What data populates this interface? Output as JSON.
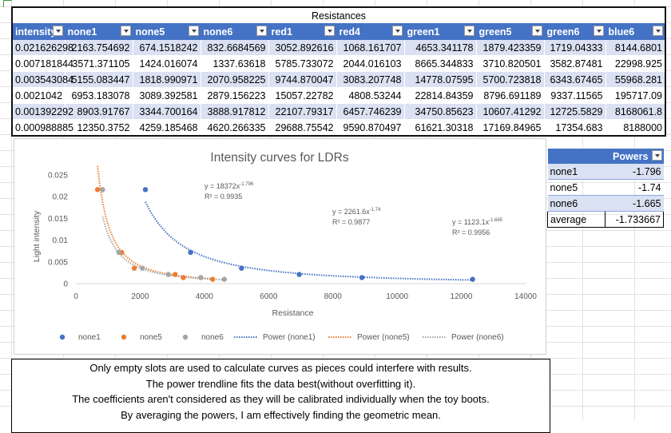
{
  "sheet": {
    "title": "Resistances",
    "headers": [
      "intensity",
      "none1",
      "none5",
      "none6",
      "red1",
      "red4",
      "green1",
      "green5",
      "green6",
      "blue6"
    ],
    "rows": [
      [
        "0.021626298",
        "2163.754692",
        "674.1518242",
        "832.6684569",
        "3052.892616",
        "1068.161707",
        "4653.341178",
        "1879.423359",
        "1719.04333",
        "8144.6801"
      ],
      [
        "0.007181844",
        "3571.371105",
        "1424.016074",
        "1337.63618",
        "5785.733072",
        "2044.016103",
        "8665.344833",
        "3710.820501",
        "3582.87481",
        "22998.925"
      ],
      [
        "0.003543084",
        "5155.083447",
        "1818.990971",
        "2070.958225",
        "9744.870047",
        "3083.207748",
        "14778.07595",
        "5700.723818",
        "6343.67465",
        "55968.281"
      ],
      [
        "0.0021042",
        "6953.183078",
        "3089.392581",
        "2879.156223",
        "15057.22782",
        "4808.53244",
        "22814.84359",
        "8796.691189",
        "9337.11565",
        "195717.09"
      ],
      [
        "0.001392292",
        "8903.91767",
        "3344.700164",
        "3888.917812",
        "22107.79317",
        "6457.746239",
        "34750.85623",
        "10607.41292",
        "12725.5829",
        "8168061.8"
      ],
      [
        "0.000988885",
        "12350.3752",
        "4259.185468",
        "4620.266335",
        "29688.75542",
        "9590.870497",
        "61621.30318",
        "17169.84965",
        "17354.683",
        "8188000"
      ]
    ]
  },
  "chart_data": {
    "type": "scatter",
    "title": "Intensity curves for LDRs",
    "xlabel": "Resistance",
    "ylabel": "Light intensity",
    "xlim": [
      0,
      14000
    ],
    "ylim": [
      0,
      0.025
    ],
    "x_ticks": [
      "0",
      "2000",
      "4000",
      "6000",
      "8000",
      "10000",
      "12000",
      "14000"
    ],
    "y_ticks": [
      "0",
      "0.005",
      "0.01",
      "0.015",
      "0.02",
      "0.025"
    ],
    "grid": false,
    "legend_position": "bottom",
    "series": [
      {
        "name": "none1",
        "color": "#4472c4",
        "x": [
          2163.754692,
          3571.371105,
          5155.083447,
          6953.183078,
          8903.91767,
          12350.3752
        ],
        "y": [
          0.021626298,
          0.007181844,
          0.003543084,
          0.0021042,
          0.001392292,
          0.000988885
        ],
        "trend": {
          "name": "Power (none1)",
          "coef": 18372,
          "power": -1.796
        }
      },
      {
        "name": "none5",
        "color": "#ed7d31",
        "x": [
          674.1518242,
          1424.016074,
          1818.990971,
          3089.392581,
          3344.700164,
          4259.185468
        ],
        "y": [
          0.021626298,
          0.007181844,
          0.003543084,
          0.0021042,
          0.001392292,
          0.000988885
        ],
        "trend": {
          "name": "Power (none5)",
          "coef": 2261.6,
          "power": -1.74
        }
      },
      {
        "name": "none6",
        "color": "#a5a5a5",
        "x": [
          832.6684569,
          1337.63618,
          2070.958225,
          2879.156223,
          3888.917812,
          4620.266335
        ],
        "y": [
          0.021626298,
          0.007181844,
          0.003543084,
          0.0021042,
          0.001392292,
          0.000988885
        ],
        "trend": {
          "name": "Power (none6)",
          "coef": 1123.1,
          "power": -1.665
        }
      }
    ],
    "annotations": [
      {
        "eq_base": "y = 18372x",
        "eq_exp": "-1.796",
        "r2": "R² = 0.9935"
      },
      {
        "eq_base": "y = 2261.6x",
        "eq_exp": "-1.74",
        "r2": "R² = 0.9877"
      },
      {
        "eq_base": "y = 1123.1x",
        "eq_exp": "-1.665",
        "r2": "R² = 0.9956"
      }
    ]
  },
  "powers": {
    "header": "Powers",
    "rows": [
      {
        "label": "none1",
        "value": "-1.796"
      },
      {
        "label": "none5",
        "value": "-1.74"
      },
      {
        "label": "none6",
        "value": "-1.665"
      },
      {
        "label": "average",
        "value": "-1.733667"
      }
    ]
  },
  "notes": [
    "Only empty slots are used to calculate curves as pieces could interfere with results.",
    "The power trendline fits the data best(without overfitting it).",
    "The coefficients aren't considered as they will be calibrated individually when the toy boots.",
    "By averaging the powers, I am effectively finding the geometric mean."
  ]
}
